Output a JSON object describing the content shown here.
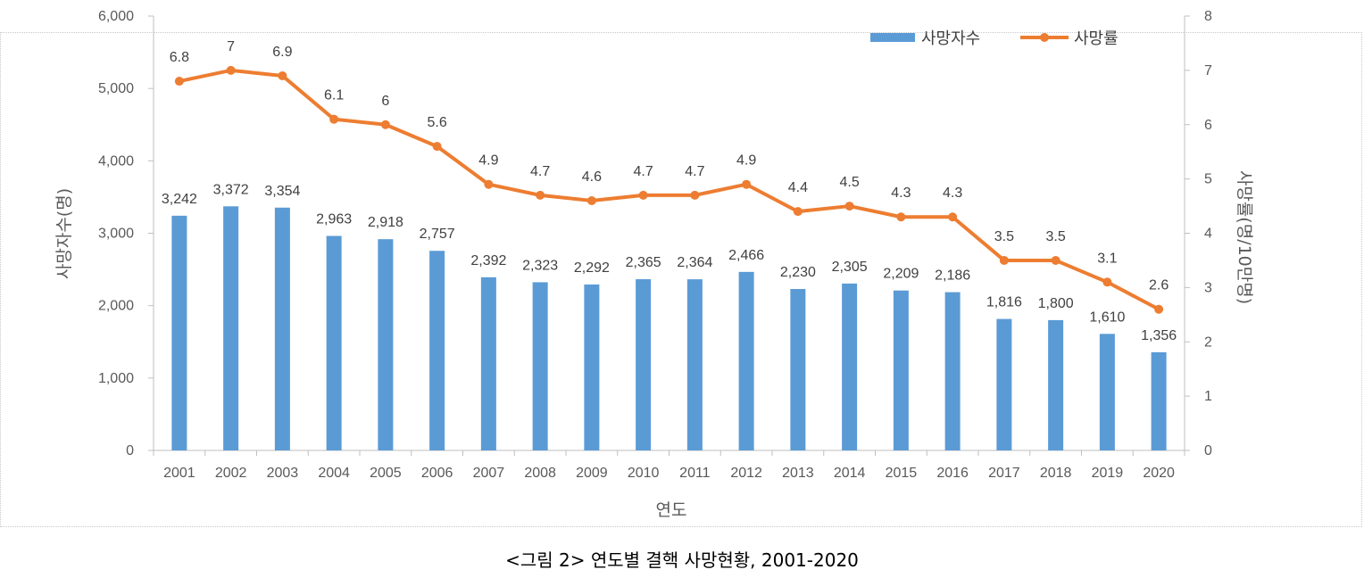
{
  "caption": "<그림 2> 연도별 결핵 사망현황, 2001-2020",
  "chart_data": {
    "type": "bar+line",
    "categories": [
      "2001",
      "2002",
      "2003",
      "2004",
      "2005",
      "2006",
      "2007",
      "2008",
      "2009",
      "2010",
      "2011",
      "2012",
      "2013",
      "2014",
      "2015",
      "2016",
      "2017",
      "2018",
      "2019",
      "2020"
    ],
    "series": [
      {
        "name": "사망자수",
        "type": "bar",
        "axis": "left",
        "color": "#5b9bd5",
        "values": [
          3242,
          3372,
          3354,
          2963,
          2918,
          2757,
          2392,
          2323,
          2292,
          2365,
          2364,
          2466,
          2230,
          2305,
          2209,
          2186,
          1816,
          1800,
          1610,
          1356
        ],
        "labels": [
          "3,242",
          "3,372",
          "3,354",
          "2,963",
          "2,918",
          "2,757",
          "2,392",
          "2,323",
          "2,292",
          "2,365",
          "2,364",
          "2,466",
          "2,230",
          "2,305",
          "2,209",
          "2,186",
          "1,816",
          "1,800",
          "1,610",
          "1,356"
        ]
      },
      {
        "name": "사망률",
        "type": "line",
        "axis": "right",
        "color": "#ed7d31",
        "values": [
          6.8,
          7,
          6.9,
          6.1,
          6,
          5.6,
          4.9,
          4.7,
          4.6,
          4.7,
          4.7,
          4.9,
          4.4,
          4.5,
          4.3,
          4.3,
          3.5,
          3.5,
          3.1,
          2.6
        ],
        "labels": [
          "6.8",
          "7",
          "6.9",
          "6.1",
          "6",
          "5.6",
          "4.9",
          "4.7",
          "4.6",
          "4.7",
          "4.7",
          "4.9",
          "4.4",
          "4.5",
          "4.3",
          "4.3",
          "3.5",
          "3.5",
          "3.1",
          "2.6"
        ]
      }
    ],
    "xlabel": "연도",
    "ylabel_left": "사망자수(명)",
    "ylabel_right": "사망률(명/10만명)",
    "ylim_left": [
      0,
      6000
    ],
    "ylim_right": [
      0,
      8
    ],
    "yticks_left": [
      "0",
      "1,000",
      "2,000",
      "3,000",
      "4,000",
      "5,000",
      "6,000"
    ],
    "yticks_right": [
      "0",
      "1",
      "2",
      "3",
      "4",
      "5",
      "6",
      "7",
      "8"
    ],
    "legend_position": "top-right",
    "grid": false
  }
}
